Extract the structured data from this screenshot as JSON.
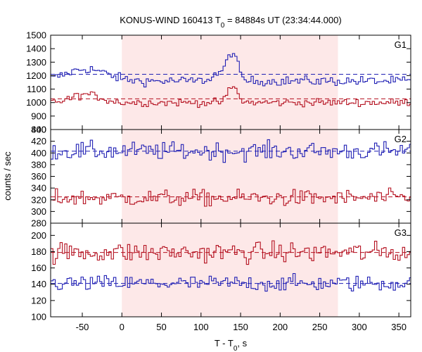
{
  "title_main": "KONUS-WIND 160413 T",
  "title_sub": "0",
  "title_rest": " = 84884s UT (23:34:44.000)",
  "ylabel": "counts / sec",
  "xlabel_main": "T - T",
  "xlabel_sub": "0",
  "xlabel_rest": ", s",
  "chart_data": {
    "type": "line",
    "shared_x": {
      "xlim": [
        -90,
        365
      ],
      "ticks": [
        -50,
        0,
        50,
        100,
        150,
        200,
        250,
        300,
        350
      ],
      "tick_labels": [
        "-50",
        "0",
        "50",
        "100",
        "150",
        "200",
        "250",
        "300",
        "350"
      ],
      "shaded_interval": [
        0,
        273
      ],
      "shade_color": "#fde8e8"
    },
    "panels": [
      {
        "name": "G1",
        "ylim": [
          800,
          1500
        ],
        "yticks": [
          800,
          900,
          1000,
          1100,
          1200,
          1300,
          1400,
          1500
        ],
        "ytick_labels": [
          "800",
          "900",
          "1000",
          "1100",
          "1200",
          "1300",
          "1400",
          "1500"
        ],
        "series": [
          {
            "color": "#1f1fb4",
            "background": 1210,
            "baseline": 1160,
            "noise": 25,
            "features": [
              [
                -45,
                90,
                25
              ],
              [
                140,
                200,
                6
              ],
              [
                125,
                60,
                10
              ]
            ]
          },
          {
            "color": "#b40f1e",
            "background": 1028,
            "baseline": 1000,
            "noise": 20,
            "features": [
              [
                -45,
                60,
                18
              ],
              [
                140,
                120,
                6
              ]
            ]
          }
        ]
      },
      {
        "name": "G2",
        "ylim": [
          280,
          440
        ],
        "yticks": [
          280,
          300,
          320,
          340,
          360,
          380,
          400,
          420,
          440
        ],
        "ytick_labels": [
          "280",
          "300",
          "320",
          "340",
          "360",
          "380",
          "400",
          "420",
          "440"
        ],
        "series": [
          {
            "color": "#1f1fb4",
            "background": 403,
            "baseline": 403,
            "noise": 11,
            "features": []
          },
          {
            "color": "#b40f1e",
            "background": 325,
            "baseline": 323,
            "noise": 10,
            "features": []
          }
        ]
      },
      {
        "name": "G3",
        "ylim": [
          100,
          215
        ],
        "yticks": [
          100,
          120,
          140,
          160,
          180,
          200
        ],
        "ytick_labels": [
          "100",
          "120",
          "140",
          "160",
          "180",
          "200"
        ],
        "series": [
          {
            "color": "#1f1fb4",
            "background": 141,
            "baseline": 141,
            "noise": 7,
            "features": []
          },
          {
            "color": "#b40f1e",
            "background": 179,
            "baseline": 179,
            "noise": 9,
            "features": []
          }
        ]
      }
    ]
  }
}
